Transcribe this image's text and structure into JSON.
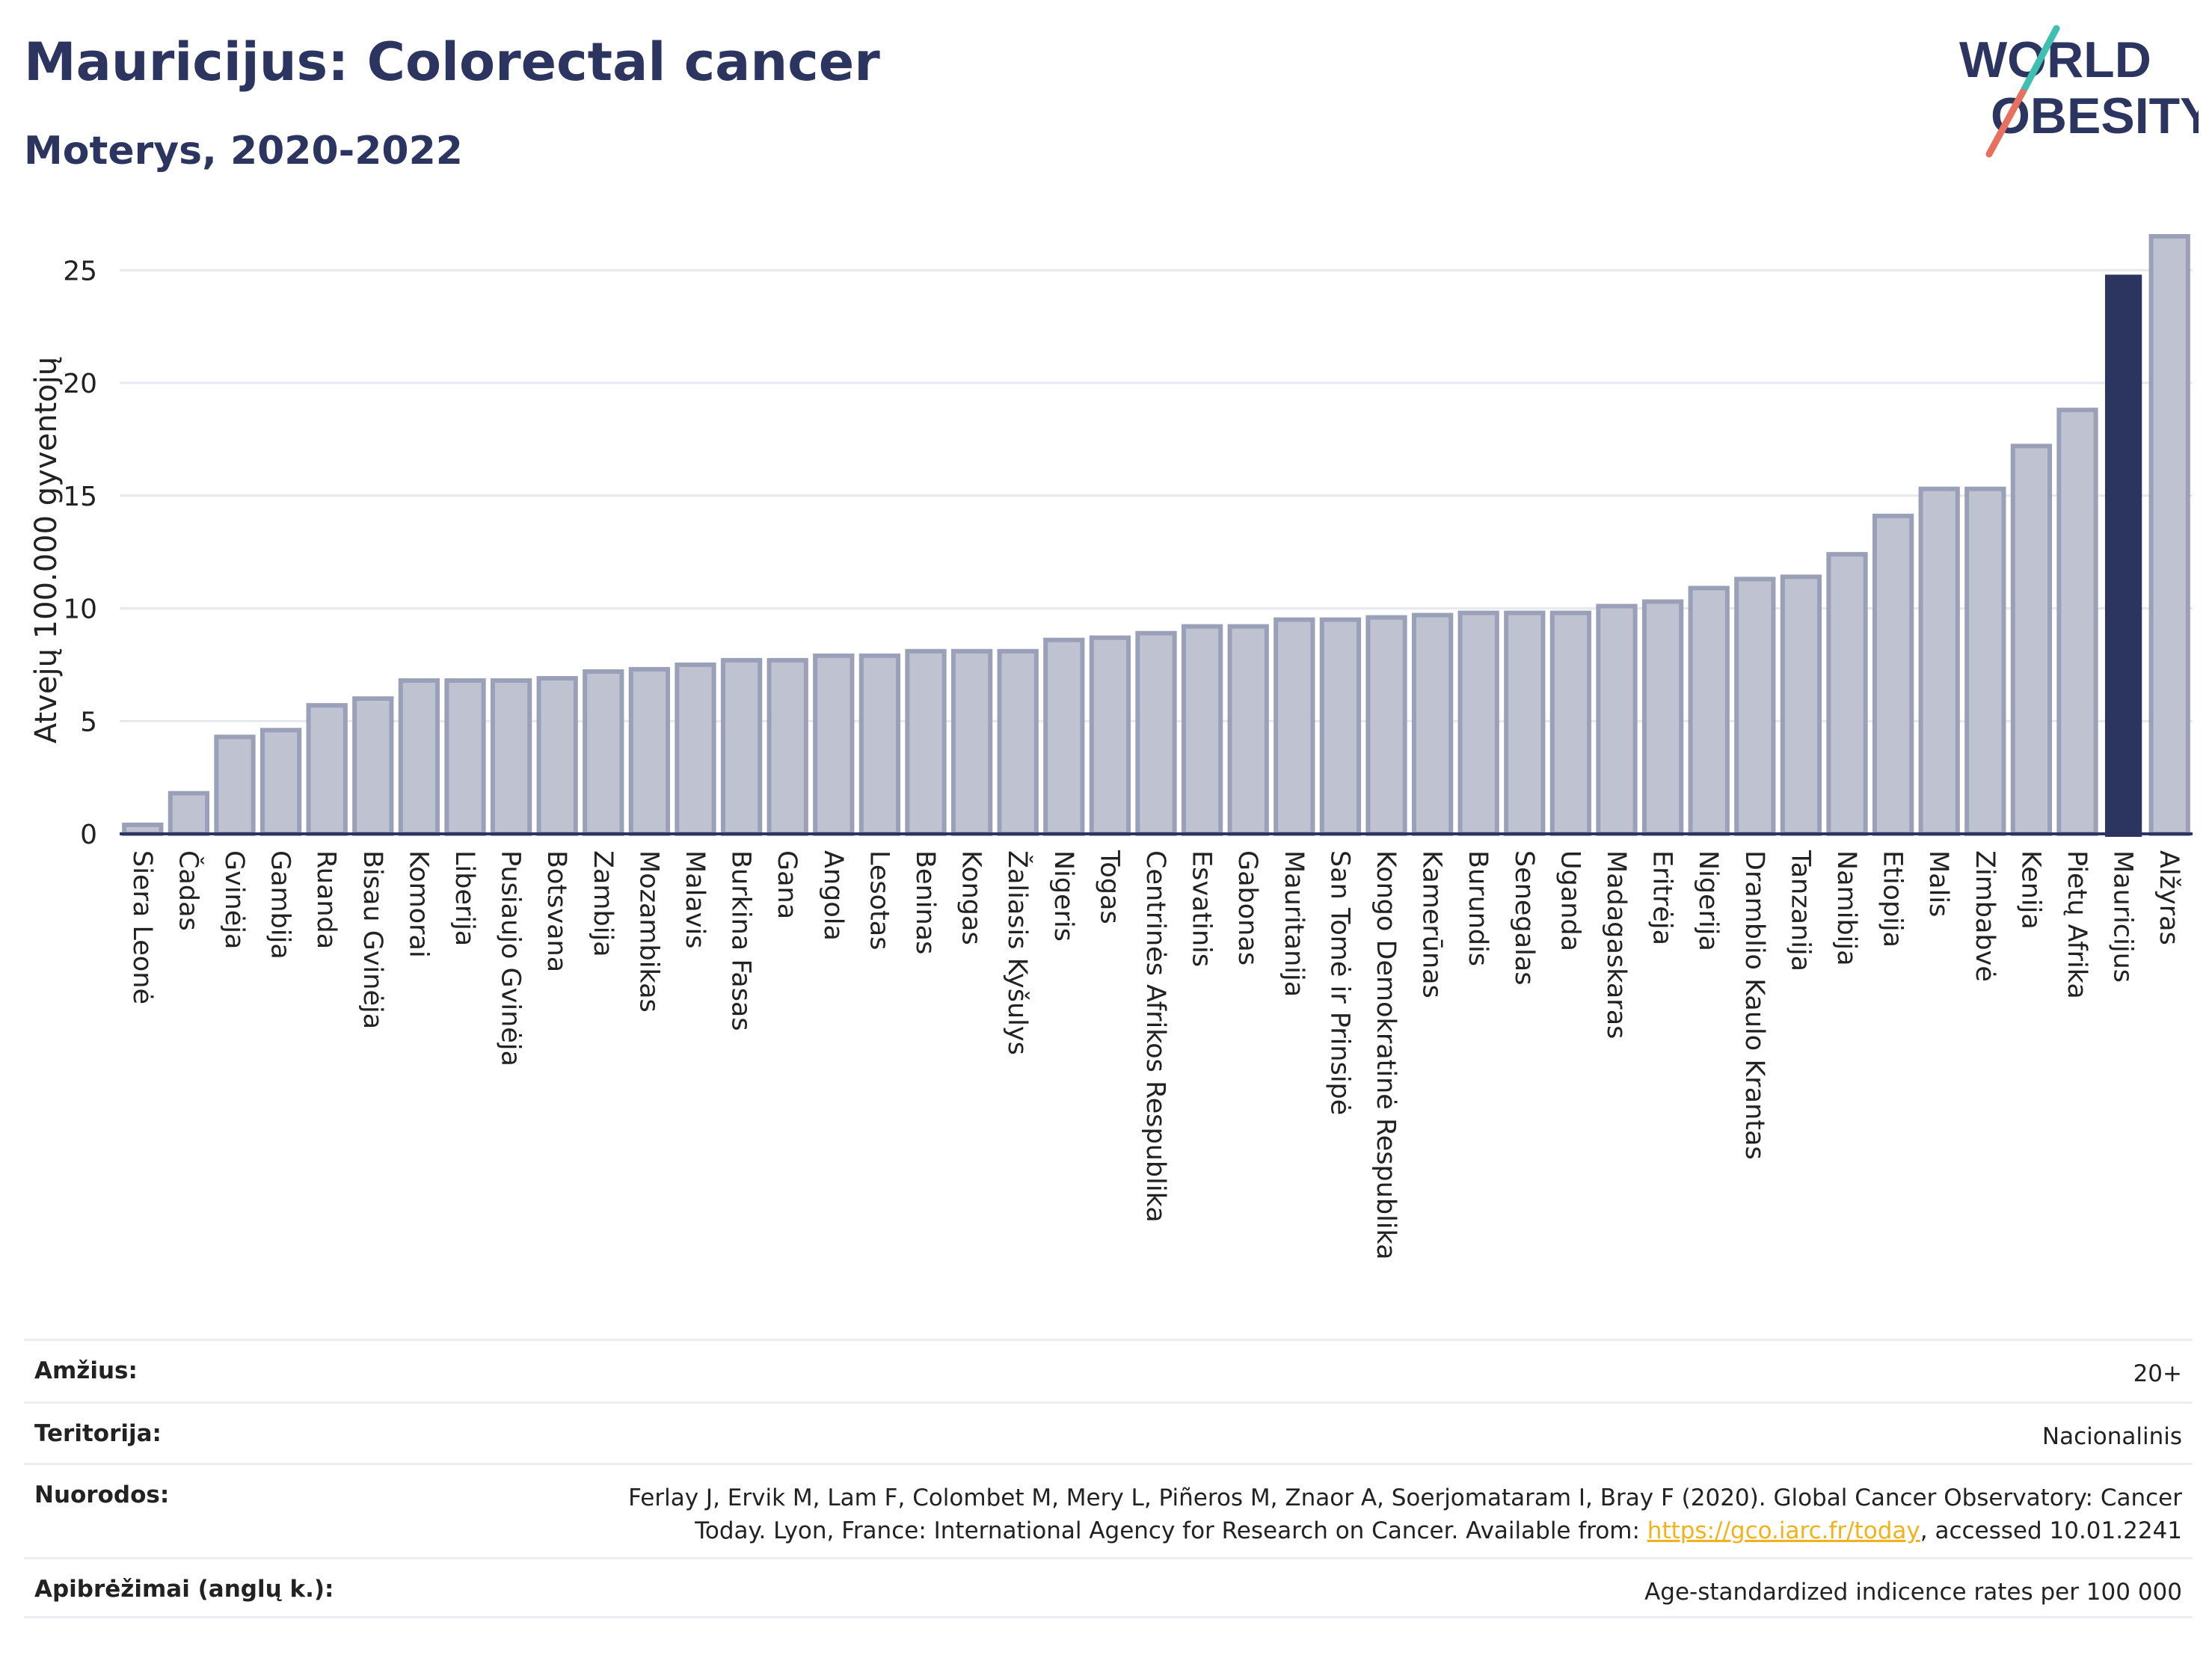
{
  "title": "Mauricijus: Colorectal cancer",
  "subtitle": "Moterys, 2020-2022",
  "logo": {
    "line1": "WORLD",
    "line2": "OBESITY"
  },
  "colors": {
    "bar": "#bfc3d1",
    "bar_stroke": "#9aa0b7",
    "highlight": "#2b3560",
    "axis": "#2b3560",
    "grid": "#e6e8ee",
    "link": "#f2b21c"
  },
  "chart_data": {
    "type": "bar",
    "title": "Mauricijus: Colorectal cancer",
    "subtitle": "Moterys, 2020-2022",
    "ylabel": "Atvejų 100.000 gyventojų",
    "xlabel": "",
    "ylim": [
      0,
      27
    ],
    "yticks": [
      0,
      5,
      10,
      15,
      20,
      25
    ],
    "grid": true,
    "highlight": "Mauricijus",
    "categories": [
      "Siera Leonė",
      "Čadas",
      "Gvinėja",
      "Gambija",
      "Ruanda",
      "Bisau Gvinėja",
      "Komorai",
      "Liberija",
      "Pusiaujo Gvinėja",
      "Botsvana",
      "Zambija",
      "Mozambikas",
      "Malavis",
      "Burkina Fasas",
      "Gana",
      "Angola",
      "Lesotas",
      "Beninas",
      "Kongas",
      "Žaliasis Kyšulys",
      "Nigeris",
      "Togas",
      "Centrinės Afrikos Respublika",
      "Esvatinis",
      "Gabonas",
      "Mauritanija",
      "San Tomė ir Prinsipė",
      "Kongo Demokratinė Respublika",
      "Kamerūnas",
      "Burundis",
      "Senegalas",
      "Uganda",
      "Madagaskaras",
      "Eritrėja",
      "Nigerija",
      "Dramblio Kaulo Krantas",
      "Tanzanija",
      "Namibija",
      "Etiopija",
      "Malis",
      "Zimbabvė",
      "Kenija",
      "Pietų Afrika",
      "Mauricijus",
      "Alžyras"
    ],
    "values": [
      0.4,
      1.8,
      4.3,
      4.6,
      5.7,
      6.0,
      6.8,
      6.8,
      6.8,
      6.9,
      7.2,
      7.3,
      7.5,
      7.7,
      7.7,
      7.9,
      7.9,
      8.1,
      8.1,
      8.1,
      8.6,
      8.7,
      8.9,
      9.2,
      9.2,
      9.5,
      9.5,
      9.6,
      9.7,
      9.8,
      9.8,
      9.8,
      10.1,
      10.3,
      10.9,
      11.3,
      11.4,
      12.4,
      14.1,
      15.3,
      15.3,
      17.2,
      18.8,
      24.8,
      26.5
    ]
  },
  "info": [
    {
      "label": "Amžius:",
      "value": "20+"
    },
    {
      "label": "Teritorija:",
      "value": "Nacionalinis"
    },
    {
      "label": "Nuorodos:",
      "value_line1": "Ferlay J, Ervik M, Lam F, Colombet M, Mery L, Piñeros M, Znaor A, Soerjomataram I, Bray F (2020). Global Cancer Observatory: Cancer",
      "value_line2_pre": "Today. Lyon, France: International Agency for Research on Cancer. Available from: ",
      "link": "https://gco.iarc.fr/today",
      "value_line2_post": ", accessed 10.01.2241"
    },
    {
      "label": "Apibrėžimai (anglų k.):",
      "value": "Age-standardized indicence rates per 100 000"
    }
  ]
}
